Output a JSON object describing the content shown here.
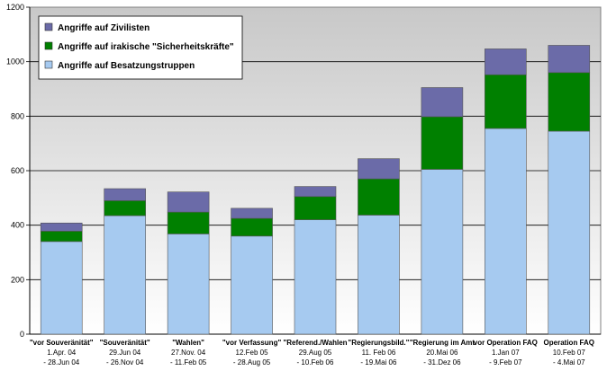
{
  "chart_data": {
    "type": "bar",
    "stacked": true,
    "categories": [
      {
        "label": "\"vor Souveränität\"",
        "date_from": "1.Apr. 04",
        "date_to": "- 28.Jun 04"
      },
      {
        "label": "\"Souveränität\"",
        "date_from": "29.Jun 04",
        "date_to": "- 26.Nov 04"
      },
      {
        "label": "\"Wahlen\"",
        "date_from": "27.Nov. 04",
        "date_to": "- 11.Feb 05"
      },
      {
        "label": "\"vor Verfassung\"",
        "date_from": "12.Feb 05",
        "date_to": "- 28.Aug 05"
      },
      {
        "label": "\"Referend./Wahlen",
        "date_from": "29.Aug 05",
        "date_to": "- 10.Feb 06"
      },
      {
        "label": "\"Regierungsbild.\"",
        "date_from": "11. Feb 06",
        "date_to": "- 19.Mai 06"
      },
      {
        "label": "\"Regierung im Amt",
        "date_from": "20.Mai 06",
        "date_to": "- 31.Dez 06"
      },
      {
        "label": "vor Operation FAQ",
        "date_from": "1.Jan 07",
        "date_to": "- 9.Feb 07"
      },
      {
        "label": "Operation FAQ",
        "date_from": "10.Feb 07",
        "date_to": "- 4.Mai 07"
      }
    ],
    "series": [
      {
        "name": "Angriffe auf Besatzungstruppen",
        "color": "#a6caf0",
        "values": [
          340,
          435,
          368,
          360,
          420,
          437,
          605,
          755,
          745
        ]
      },
      {
        "name": "Angriffe auf irakische \"Sicherheitskräfte\"",
        "color": "#008000",
        "values": [
          38,
          55,
          80,
          65,
          85,
          133,
          193,
          197,
          215
        ]
      },
      {
        "name": "Angriffe auf Zivilisten",
        "color": "#6b6ba8",
        "values": [
          30,
          44,
          74,
          37,
          37,
          74,
          107,
          95,
          100
        ]
      }
    ],
    "legend_order": [
      2,
      1,
      0
    ],
    "legend_position": "top-left",
    "yticks": [
      "0",
      "200",
      "400",
      "600",
      "800",
      "1000",
      "1200"
    ],
    "ylim": [
      0,
      1200
    ],
    "grid": true,
    "plot_background": "#c0c0c0"
  }
}
